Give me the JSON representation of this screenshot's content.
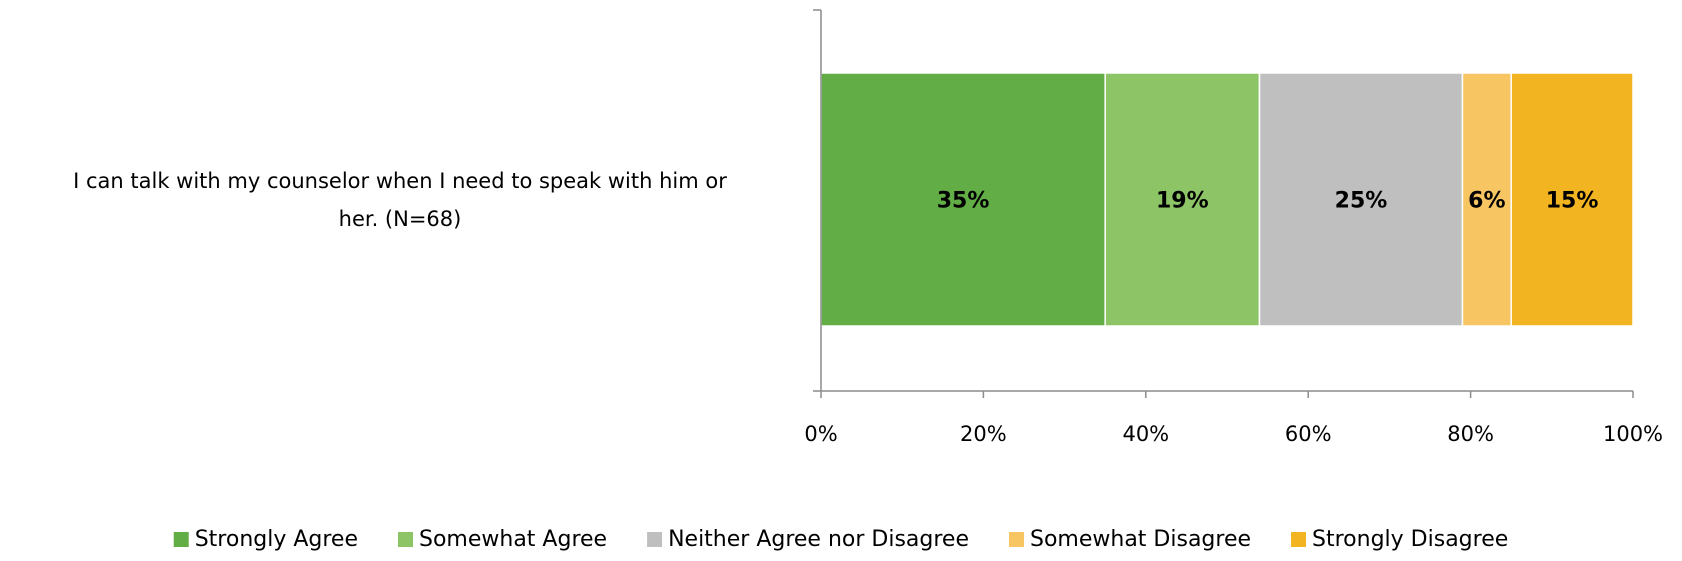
{
  "chart_data": {
    "type": "bar",
    "orientation": "horizontal",
    "stacked": true,
    "categories": [
      "I can talk with my counselor when I need to speak with him or her. (N=68)"
    ],
    "category_label_lines": [
      "I can talk with my counselor when I need to speak with him or",
      "her. (N=68)"
    ],
    "series": [
      {
        "name": "Strongly Agree",
        "values": [
          35
        ],
        "label": "35%",
        "color": "#62ad46"
      },
      {
        "name": "Somewhat Agree",
        "values": [
          19
        ],
        "label": "19%",
        "color": "#8dc466"
      },
      {
        "name": "Neither Agree nor Disagree",
        "values": [
          25
        ],
        "label": "25%",
        "color": "#bfbfbf"
      },
      {
        "name": "Somewhat Disagree",
        "values": [
          6
        ],
        "label": "6%",
        "color": "#f7c562"
      },
      {
        "name": "Strongly Disagree",
        "values": [
          15
        ],
        "label": "15%",
        "color": "#f2b521"
      }
    ],
    "xlim": [
      0,
      100
    ],
    "x_ticks": [
      "0%",
      "20%",
      "40%",
      "60%",
      "80%",
      "100%"
    ],
    "title": "",
    "xlabel": "",
    "ylabel": "",
    "grid": false,
    "legend_position": "bottom"
  }
}
